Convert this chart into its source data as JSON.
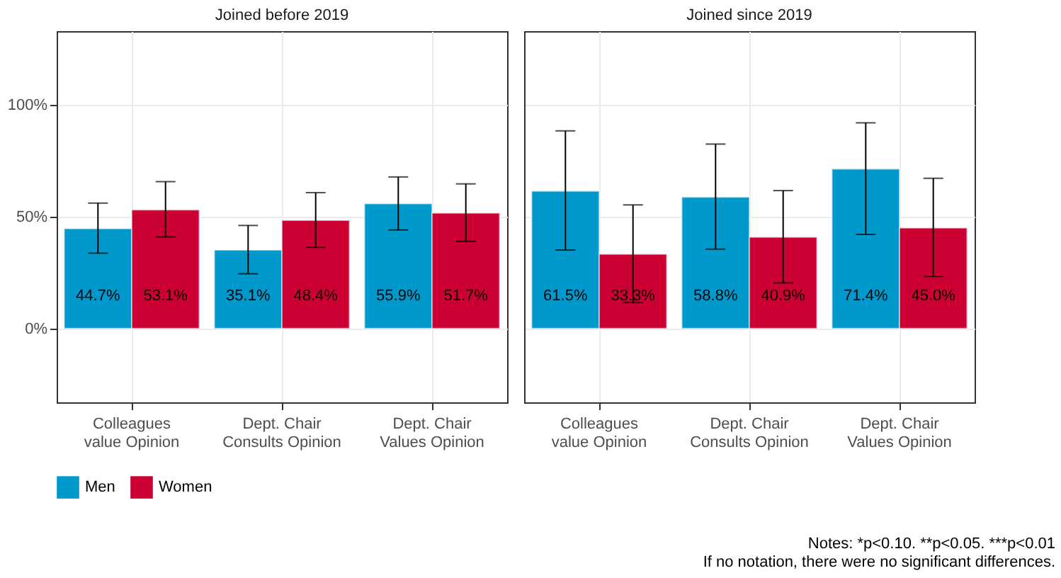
{
  "chart_data": [
    {
      "type": "bar",
      "title": "Joined before 2019",
      "categories": [
        "Colleagues\nvalue Opinion",
        "Dept. Chair\nConsults Opinion",
        "Dept. Chair\nValues Opinion"
      ],
      "series": [
        {
          "name": "Men",
          "color": "#0099cc",
          "values": [
            44.7,
            35.1,
            55.9
          ],
          "value_labels": [
            "44.7%",
            "35.1%",
            "55.9%"
          ],
          "errors": [
            [
              33.7,
              56.1
            ],
            [
              24.5,
              46.1
            ],
            [
              44.1,
              67.8
            ]
          ]
        },
        {
          "name": "Women",
          "color": "#cc0033",
          "values": [
            53.1,
            48.4,
            51.7
          ],
          "value_labels": [
            "53.1%",
            "48.4%",
            "51.7%"
          ],
          "errors": [
            [
              41.0,
              65.7
            ],
            [
              36.3,
              60.8
            ],
            [
              39.0,
              64.7
            ]
          ]
        }
      ],
      "ylim": [
        -33,
        133
      ],
      "yticks": [
        {
          "value": 0,
          "label": "0%"
        },
        {
          "value": 50,
          "label": "50%"
        },
        {
          "value": 100,
          "label": "100%"
        }
      ],
      "grid": true,
      "legend": "bottom"
    },
    {
      "type": "bar",
      "title": "Joined since 2019",
      "categories": [
        "Colleagues\nvalue Opinion",
        "Dept. Chair\nConsults Opinion",
        "Dept. Chair\nValues Opinion"
      ],
      "series": [
        {
          "name": "Men",
          "color": "#0099cc",
          "values": [
            61.5,
            58.8,
            71.4
          ],
          "value_labels": [
            "61.5%",
            "58.8%",
            "71.4%"
          ],
          "errors": [
            [
              35.1,
              88.4
            ],
            [
              35.5,
              82.5
            ],
            [
              42.1,
              92.0
            ]
          ]
        },
        {
          "name": "Women",
          "color": "#cc0033",
          "values": [
            33.3,
            40.9,
            45.0
          ],
          "value_labels": [
            "33.3%",
            "40.9%",
            "45.0%"
          ],
          "errors": [
            [
              11.6,
              55.3
            ],
            [
              20.4,
              61.7
            ],
            [
              23.3,
              67.2
            ]
          ]
        }
      ],
      "ylim": [
        -33,
        133
      ],
      "yticks": [
        0,
        50,
        100
      ],
      "grid": true,
      "legend": "bottom",
      "tick_labels": "x",
      "annotations": [
        "Notes: *p<0.10. **p<0.05. ***p<0.01",
        "If no notation, there were no significant differences."
      ]
    }
  ]
}
